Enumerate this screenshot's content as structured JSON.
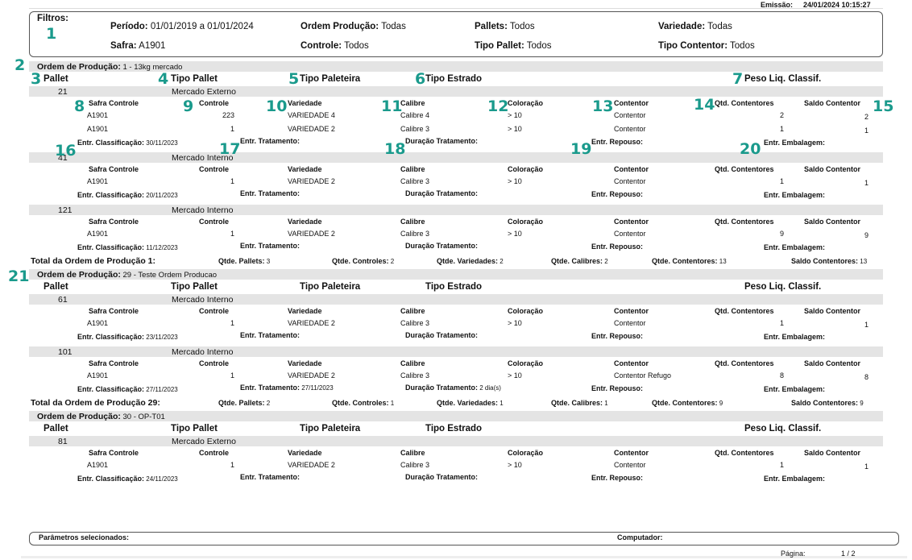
{
  "header": {
    "emissao_label": "Emissão:",
    "emissao_value": "24/01/2024 10:15:27"
  },
  "filters": {
    "title": "Filtros:",
    "periodo_label": "Período:",
    "periodo_value": "01/01/2019 a 01/01/2024",
    "safra_label": "Safra:",
    "safra_value": "A1901",
    "ordem_label": "Ordem Produção:",
    "ordem_value": "Todas",
    "controle_label": "Controle:",
    "controle_value": "Todos",
    "pallets_label": "Pallets:",
    "pallets_value": "Todos",
    "tipo_pallet_label": "Tipo Pallet:",
    "tipo_pallet_value": "Todos",
    "variedade_label": "Variedade:",
    "variedade_value": "Todas",
    "tipo_contentor_label": "Tipo Contentor:",
    "tipo_contentor_value": "Todos"
  },
  "labels": {
    "ordem": "Ordem de Produção:",
    "pallet": "Pallet",
    "tipo_pallet": "Tipo Pallet",
    "tipo_paleteira": "Tipo Paleteira",
    "tipo_estrado": "Tipo Estrado",
    "peso": "Peso Liq. Classif.",
    "safra_controle": "Safra Controle",
    "controle": "Controle",
    "variedade": "Variedade",
    "calibre": "Calibre",
    "coloracao": "Coloração",
    "contentor": "Contentor",
    "qtd_contentores": "Qtd. Contentores",
    "saldo_contentor": "Saldo Contentor",
    "entr_classificacao": "Entr. Classificação:",
    "entr_tratamento": "Entr. Tratamento:",
    "duracao_tratamento": "Duração Tratamento:",
    "entr_repouso": "Entr. Repouso:",
    "entr_embalagem": "Entr. Embalagem:",
    "qtde_pallets": "Qtde. Pallets:",
    "qtde_controles": "Qtde. Controles:",
    "qtde_variedades": "Qtde. Variedades:",
    "qtde_calibres": "Qtde. Calibres:",
    "qtde_contentores": "Qtde. Contentores:",
    "saldo_contentores": "Saldo Contentores:"
  },
  "annotations": [
    "1",
    "2",
    "3",
    "4",
    "5",
    "6",
    "7",
    "8",
    "9",
    "10",
    "11",
    "12",
    "13",
    "14",
    "15",
    "16",
    "17",
    "18",
    "19",
    "20",
    "21"
  ],
  "orders": [
    {
      "title": "1 - 13kg mercado",
      "pallets": [
        {
          "id": "21",
          "tipo": "Mercado Externo",
          "rows": [
            {
              "safra": "A1901",
              "controle": "223",
              "variedade": "VARIEDADE 4",
              "calibre": "Calibre 4",
              "coloracao": "> 10",
              "contentor": "Contentor",
              "qtd": "2",
              "saldo": "2"
            },
            {
              "safra": "A1901",
              "controle": "1",
              "variedade": "VARIEDADE 2",
              "calibre": "Calibre 3",
              "coloracao": "> 10",
              "contentor": "Contentor",
              "qtd": "1",
              "saldo": "1"
            }
          ],
          "entr_classificacao": "30/11/2023",
          "entr_tratamento": "",
          "duracao": ""
        },
        {
          "id": "41",
          "tipo": "Mercado Interno",
          "rows": [
            {
              "safra": "A1901",
              "controle": "1",
              "variedade": "VARIEDADE 2",
              "calibre": "Calibre 3",
              "coloracao": "> 10",
              "contentor": "Contentor",
              "qtd": "1",
              "saldo": "1"
            }
          ],
          "entr_classificacao": "20/11/2023",
          "entr_tratamento": "",
          "duracao": ""
        },
        {
          "id": "121",
          "tipo": "Mercado Interno",
          "rows": [
            {
              "safra": "A1901",
              "controle": "1",
              "variedade": "VARIEDADE 2",
              "calibre": "Calibre 3",
              "coloracao": "> 10",
              "contentor": "Contentor",
              "qtd": "9",
              "saldo": "9"
            }
          ],
          "entr_classificacao": "11/12/2023",
          "entr_tratamento": "",
          "duracao": ""
        }
      ],
      "total": {
        "label": "Total da Ordem de Produção 1:",
        "pallets": "3",
        "controles": "2",
        "variedades": "2",
        "calibres": "2",
        "contentores": "13",
        "saldo": "13"
      }
    },
    {
      "title": "29 - Teste Ordem Producao",
      "pallets": [
        {
          "id": "61",
          "tipo": "Mercado Interno",
          "rows": [
            {
              "safra": "A1901",
              "controle": "1",
              "variedade": "VARIEDADE 2",
              "calibre": "Calibre 3",
              "coloracao": "> 10",
              "contentor": "Contentor",
              "qtd": "1",
              "saldo": "1"
            }
          ],
          "entr_classificacao": "23/11/2023",
          "entr_tratamento": "",
          "duracao": ""
        },
        {
          "id": "101",
          "tipo": "Mercado Interno",
          "rows": [
            {
              "safra": "A1901",
              "controle": "1",
              "variedade": "VARIEDADE 2",
              "calibre": "Calibre 3",
              "coloracao": "> 10",
              "contentor": "Contentor Refugo",
              "qtd": "8",
              "saldo": "8"
            }
          ],
          "entr_classificacao": "27/11/2023",
          "entr_tratamento": "27/11/2023",
          "duracao": "2 dia(s)"
        }
      ],
      "total": {
        "label": "Total da Ordem de Produção 29:",
        "pallets": "2",
        "controles": "1",
        "variedades": "1",
        "calibres": "1",
        "contentores": "9",
        "saldo": "9"
      }
    },
    {
      "title": "30 - OP-T01",
      "pallets": [
        {
          "id": "81",
          "tipo": "Mercado Externo",
          "rows": [
            {
              "safra": "A1901",
              "controle": "1",
              "variedade": "VARIEDADE 2",
              "calibre": "Calibre 3",
              "coloracao": "> 10",
              "contentor": "Contentor",
              "qtd": "1",
              "saldo": "1"
            }
          ],
          "entr_classificacao": "24/11/2023",
          "entr_tratamento": "",
          "duracao": ""
        }
      ]
    }
  ],
  "footer": {
    "parametros": "Parâmetros selecionados:",
    "computador": "Computador:",
    "pagina_label": "Página:",
    "pagina_value": "1 / 2"
  }
}
